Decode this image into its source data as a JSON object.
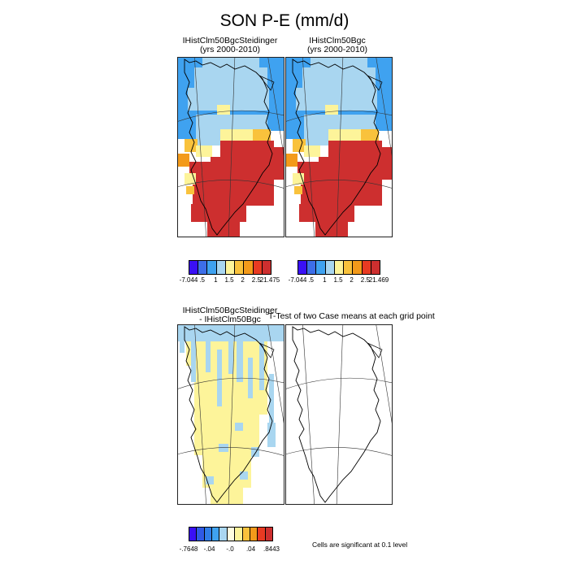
{
  "title": "SON P-E (mm/d)",
  "panels": {
    "p1": {
      "line1": "IHistClm50BgcSteidinger",
      "line2": "(yrs 2000-2010)"
    },
    "p2": {
      "line1": "IHistClm50Bgc",
      "line2": "(yrs 2000-2010)"
    },
    "p3": {
      "line1": "IHistClm50BgcSteidinger",
      "line2": "- IHistClm50Bgc"
    },
    "p4": {
      "line1": "T-Test of two Case means at each grid point"
    }
  },
  "colorbars": {
    "cb1": {
      "labels": [
        "-7.044",
        ".5",
        "1",
        "1.5",
        "2",
        "2.5",
        "21.475"
      ],
      "colors": [
        "#3a10f5",
        "#3d6ee8",
        "#3fa2f0",
        "#a9d6f0",
        "#fdf49a",
        "#f9c23c",
        "#f39a1a",
        "#e83a22",
        "#cd2f2f"
      ]
    },
    "cb2": {
      "labels": [
        "-7.044",
        ".5",
        "1",
        "1.5",
        "2",
        "2.5",
        "21.469"
      ],
      "colors": [
        "#3a10f5",
        "#3d6ee8",
        "#3fa2f0",
        "#a9d6f0",
        "#fdf49a",
        "#f9c23c",
        "#f39a1a",
        "#e83a22",
        "#cd2f2f"
      ]
    },
    "cb3": {
      "labels": [
        "-.7648",
        "-.04",
        "-.0",
        ".04",
        ".8443"
      ],
      "colors": [
        "#3a10f5",
        "#2f5ae6",
        "#2f7de8",
        "#3fa2f0",
        "#a9d6f0",
        "#fffde0",
        "#fdf49a",
        "#f9c23c",
        "#f39a1a",
        "#e83a22",
        "#cd2f2f"
      ]
    }
  },
  "note": "Cells are significant at 0.1 level",
  "map_colors": {
    "deep_blue": "#3fa2f0",
    "light_blue": "#a9d6f0",
    "pale_yellow": "#fdf49a",
    "gold": "#f9c23c",
    "orange": "#f39a1a",
    "red": "#cd2f2f",
    "coast": "#000000"
  }
}
